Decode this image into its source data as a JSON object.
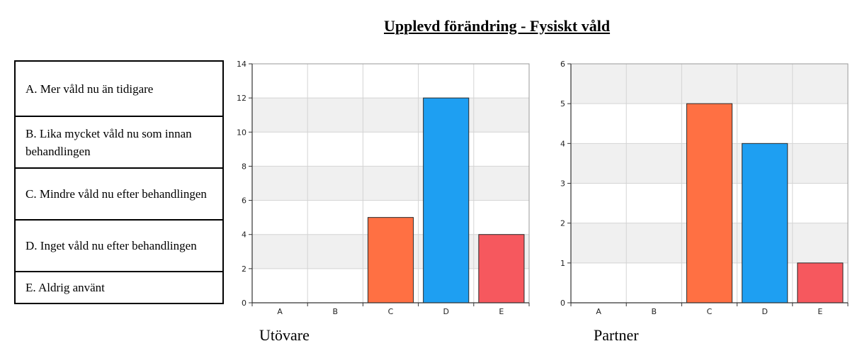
{
  "title": "Upplevd förändring - Fysiskt våld",
  "legend": [
    "A. Mer våld nu än tidigare",
    "B. Lika mycket våld nu som innan behandlingen",
    "C. Mindre våld nu efter behandlingen",
    "D. Inget våld nu efter behandlingen",
    "E. Aldrig använt"
  ],
  "chart_data": [
    {
      "type": "bar",
      "caption": "Utövare",
      "categories": [
        "A",
        "B",
        "C",
        "D",
        "E"
      ],
      "values": [
        0,
        0,
        5,
        12,
        4
      ],
      "ylim": [
        0,
        14
      ],
      "yticks": [
        0,
        2,
        4,
        6,
        8,
        10,
        12,
        14
      ],
      "bar_colors": [
        "#ff7043",
        "#ff7043",
        "#ff7043",
        "#1e9ff2",
        "#f6585e"
      ],
      "grid": true
    },
    {
      "type": "bar",
      "caption": "Partner",
      "categories": [
        "A",
        "B",
        "C",
        "D",
        "E"
      ],
      "values": [
        0,
        0,
        5,
        4,
        1
      ],
      "ylim": [
        0,
        6
      ],
      "yticks": [
        0,
        1,
        2,
        3,
        4,
        5,
        6
      ],
      "bar_colors": [
        "#ff7043",
        "#ff7043",
        "#ff7043",
        "#1e9ff2",
        "#f6585e"
      ],
      "grid": true
    }
  ]
}
